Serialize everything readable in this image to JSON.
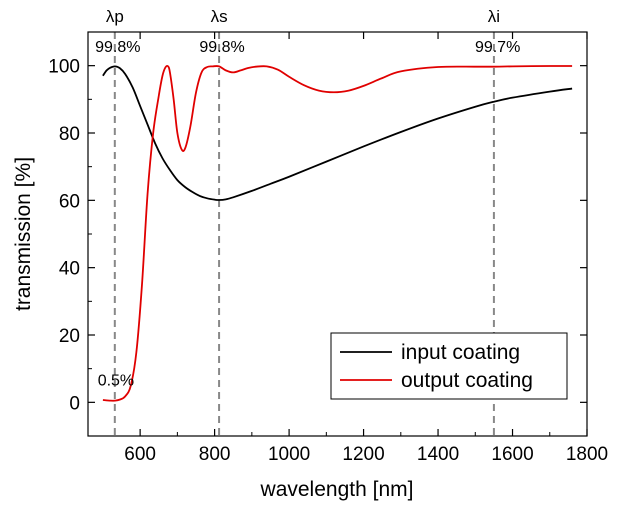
{
  "chart_data": {
    "type": "line",
    "xlabel": "wavelength [nm]",
    "ylabel": "transmission [%]",
    "xlim": [
      460,
      1800
    ],
    "ylim": [
      -10,
      110
    ],
    "xticks": [
      600,
      800,
      1000,
      1200,
      1400,
      1600,
      1800
    ],
    "yticks": [
      0,
      20,
      40,
      60,
      80,
      100
    ],
    "grid": false,
    "legend": {
      "position": "bottom-right"
    },
    "series": [
      {
        "name": "input coating",
        "color": "#000000",
        "x": [
          500,
          510,
          520,
          532,
          545,
          560,
          580,
          600,
          620,
          640,
          660,
          680,
          700,
          720,
          740,
          760,
          780,
          800,
          812,
          830,
          850,
          900,
          950,
          1000,
          1100,
          1200,
          1300,
          1400,
          1500,
          1550,
          1600,
          1700,
          1760
        ],
        "y": [
          97,
          98.6,
          99.4,
          99.8,
          99.3,
          97.5,
          93.5,
          88,
          82.5,
          77,
          72.5,
          69,
          66,
          64,
          62.5,
          61.3,
          60.6,
          60.2,
          60.1,
          60.3,
          60.9,
          62.8,
          64.9,
          67,
          71.5,
          76,
          80.3,
          84.3,
          87.8,
          89.3,
          90.5,
          92.3,
          93.2
        ]
      },
      {
        "name": "output coating",
        "color": "#e00000",
        "x": [
          500,
          520,
          532,
          545,
          560,
          575,
          590,
          605,
          620,
          635,
          650,
          660,
          668,
          675,
          680,
          690,
          700,
          712,
          722,
          735,
          750,
          765,
          780,
          795,
          812,
          830,
          850,
          870,
          890,
          910,
          940,
          970,
          1000,
          1040,
          1080,
          1120,
          1160,
          1200,
          1250,
          1300,
          1400,
          1500,
          1550,
          1600,
          1700,
          1760
        ],
        "y": [
          0.7,
          0.5,
          0.5,
          0.8,
          1.8,
          5,
          15,
          35,
          62,
          80,
          91,
          97,
          99.5,
          99.8,
          98,
          90,
          80,
          75,
          75.8,
          82,
          92,
          98,
          99.6,
          99.8,
          99.8,
          98.6,
          98,
          98.6,
          99.3,
          99.7,
          99.8,
          98.8,
          96.7,
          94.2,
          92.6,
          92.1,
          92.6,
          94,
          96.3,
          98.3,
          99.6,
          99.7,
          99.7,
          99.8,
          99.9,
          99.9
        ]
      }
    ],
    "vlines": [
      {
        "x": 532,
        "label": "λp"
      },
      {
        "x": 812,
        "label": "λs"
      },
      {
        "x": 1550,
        "label": "λi"
      }
    ],
    "annotations": [
      {
        "text": "99.8%",
        "x": 540,
        "y": 104
      },
      {
        "text": "99.8%",
        "x": 820,
        "y": 104
      },
      {
        "text": "99.7%",
        "x": 1560,
        "y": 104
      },
      {
        "text": "0.5%",
        "x": 535,
        "y": 5
      }
    ]
  }
}
